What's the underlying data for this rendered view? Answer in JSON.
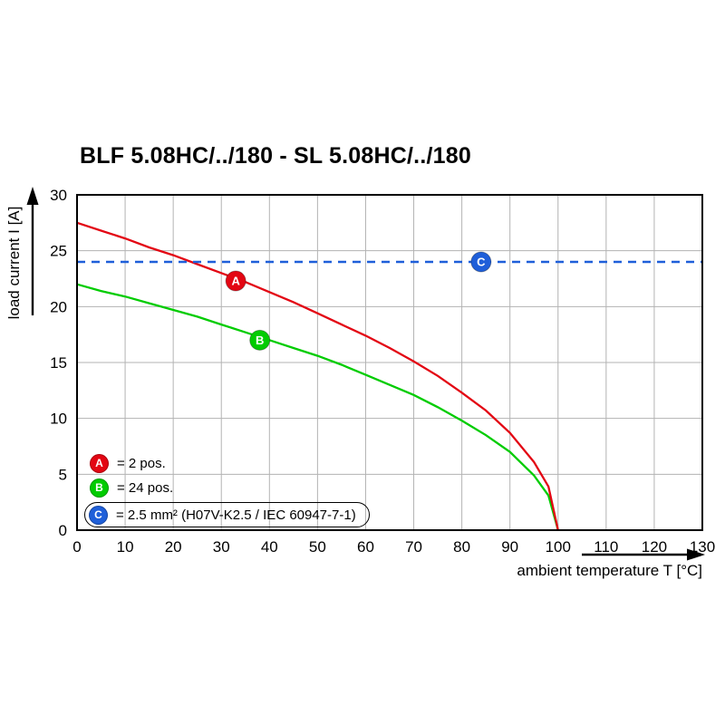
{
  "title": "BLF 5.08HC/../180 - SL 5.08HC/../180",
  "chart_data": {
    "type": "line",
    "title": "BLF 5.08HC/../180 - SL 5.08HC/../180",
    "xlabel": "ambient temperature T [°C]",
    "ylabel": "load current I [A]",
    "xlim": [
      0,
      130
    ],
    "ylim": [
      0,
      30
    ],
    "x_ticks": [
      0,
      10,
      20,
      30,
      40,
      50,
      60,
      70,
      80,
      90,
      100,
      110,
      120,
      130
    ],
    "y_ticks": [
      0,
      5,
      10,
      15,
      20,
      25,
      30
    ],
    "grid": true,
    "legend_position": "lower-left",
    "series": [
      {
        "name": "B",
        "color": "#00cc00",
        "style": "solid",
        "x": [
          0,
          5,
          10,
          15,
          20,
          25,
          30,
          35,
          40,
          45,
          50,
          55,
          60,
          65,
          70,
          75,
          80,
          85,
          90,
          95,
          98,
          100
        ],
        "y": [
          22.0,
          21.4,
          20.9,
          20.3,
          19.7,
          19.1,
          18.4,
          17.7,
          17.0,
          16.3,
          15.6,
          14.8,
          13.9,
          13.0,
          12.1,
          11.0,
          9.8,
          8.5,
          7.0,
          4.9,
          3.1,
          0
        ]
      },
      {
        "name": "A",
        "color": "#e30613",
        "style": "solid",
        "x": [
          0,
          5,
          10,
          15,
          20,
          25,
          30,
          35,
          40,
          45,
          50,
          55,
          60,
          65,
          70,
          75,
          80,
          85,
          90,
          95,
          98,
          100
        ],
        "y": [
          27.5,
          26.8,
          26.1,
          25.3,
          24.6,
          23.8,
          23.0,
          22.2,
          21.3,
          20.4,
          19.4,
          18.4,
          17.4,
          16.3,
          15.1,
          13.8,
          12.3,
          10.7,
          8.7,
          6.1,
          3.9,
          0
        ]
      },
      {
        "name": "C",
        "color": "#1f5fd9",
        "style": "dashed",
        "x": [
          0,
          130
        ],
        "y": [
          24,
          24
        ]
      }
    ],
    "markers": [
      {
        "label": "A",
        "x": 33,
        "y": 22.3,
        "color": "#e30613"
      },
      {
        "label": "B",
        "x": 38,
        "y": 17.0,
        "color": "#00cc00"
      },
      {
        "label": "C",
        "x": 84,
        "y": 24.0,
        "color": "#1f5fd9"
      }
    ]
  },
  "legend": {
    "items": [
      {
        "label": "A",
        "color": "#e30613",
        "text": "= 2 pos."
      },
      {
        "label": "B",
        "color": "#00cc00",
        "text": "= 24 pos."
      },
      {
        "label": "C",
        "color": "#1f5fd9",
        "text": "= 2.5 mm² (H07V-K2.5 / IEC 60947-7-1)"
      }
    ]
  }
}
